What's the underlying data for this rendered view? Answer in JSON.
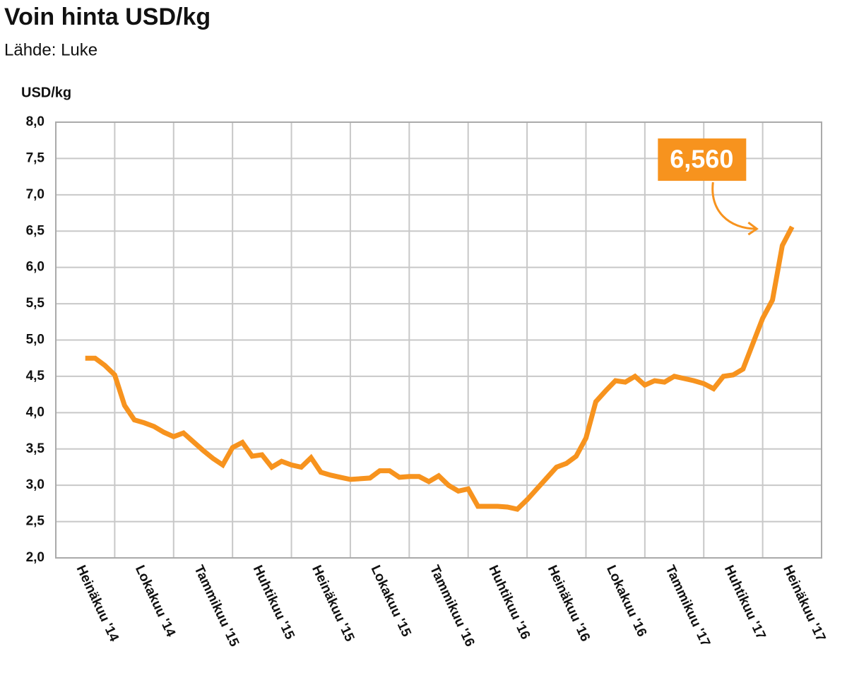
{
  "chart_data": {
    "type": "line",
    "title": "Voin hinta USD/kg",
    "subtitle": "Lähde: Luke",
    "y_label": "USD/kg",
    "color": "#f7931e",
    "grid": true,
    "categories": [
      "Heinäkuu '14",
      null,
      null,
      null,
      null,
      null,
      "Lokakuu '14",
      null,
      null,
      null,
      null,
      null,
      "Tammikuu '15",
      null,
      null,
      null,
      null,
      null,
      "Huhtikuu '15",
      null,
      null,
      null,
      null,
      null,
      "Heinäkuu '15",
      null,
      null,
      null,
      null,
      null,
      "Lokakuu '15",
      null,
      null,
      null,
      null,
      null,
      "Tammikuu '16",
      null,
      null,
      null,
      null,
      null,
      "Huhtikuu '16",
      null,
      null,
      null,
      null,
      null,
      "Heinäkuu '16",
      null,
      null,
      null,
      null,
      null,
      "Lokakuu '16",
      null,
      null,
      null,
      null,
      null,
      "Tammikuu '17",
      null,
      null,
      null,
      null,
      null,
      "Huhtikuu '17",
      null,
      null,
      null,
      null,
      null,
      "Heinäkuu '17"
    ],
    "values": [
      4.75,
      4.75,
      4.65,
      4.52,
      4.1,
      3.9,
      3.86,
      3.81,
      3.73,
      3.67,
      3.72,
      3.6,
      3.48,
      3.37,
      3.28,
      3.52,
      3.59,
      3.4,
      3.42,
      3.25,
      3.33,
      3.28,
      3.25,
      3.38,
      3.18,
      3.14,
      3.11,
      3.08,
      3.09,
      3.1,
      3.2,
      3.2,
      3.11,
      3.12,
      3.12,
      3.05,
      3.13,
      3.0,
      2.92,
      2.95,
      2.71,
      2.71,
      2.71,
      2.7,
      2.67,
      2.8,
      2.95,
      3.1,
      3.25,
      3.3,
      3.4,
      3.65,
      4.15,
      4.3,
      4.44,
      4.42,
      4.5,
      4.38,
      4.44,
      4.42,
      4.5,
      4.47,
      4.44,
      4.4,
      4.33,
      4.5,
      4.52,
      4.6,
      4.95,
      5.3,
      5.55,
      6.3,
      6.56
    ],
    "value_labels": [
      null,
      null,
      null,
      null,
      null,
      null,
      null,
      null,
      null,
      null,
      null,
      null,
      null,
      null,
      null,
      null,
      null,
      null,
      null,
      null,
      null,
      null,
      null,
      null,
      null,
      null,
      null,
      null,
      null,
      null,
      null,
      null,
      null,
      null,
      null,
      null,
      null,
      null,
      null,
      null,
      null,
      null,
      null,
      null,
      null,
      null,
      null,
      null,
      null,
      null,
      null,
      null,
      null,
      null,
      null,
      null,
      null,
      null,
      null,
      null,
      null,
      null,
      null,
      null,
      null,
      null,
      null,
      null,
      null,
      null,
      null,
      null,
      "6,560"
    ],
    "ylim": [
      2,
      8
    ],
    "yticks": [
      {
        "value": 2,
        "label": "2,0"
      },
      {
        "value": 2.5,
        "label": "2,5"
      },
      {
        "value": 3,
        "label": "3,0"
      },
      {
        "value": 3.5,
        "label": "3,5"
      },
      {
        "value": 4,
        "label": "4,0"
      },
      {
        "value": 4.5,
        "label": "4,5"
      },
      {
        "value": 5,
        "label": "5,0"
      },
      {
        "value": 5.5,
        "label": "5,5"
      },
      {
        "value": 6,
        "label": "6,0"
      },
      {
        "value": 6.5,
        "label": "6,5"
      },
      {
        "value": 7,
        "label": "7,0"
      },
      {
        "value": 7.5,
        "label": "7,5"
      },
      {
        "value": 8,
        "label": "8,0"
      }
    ]
  }
}
